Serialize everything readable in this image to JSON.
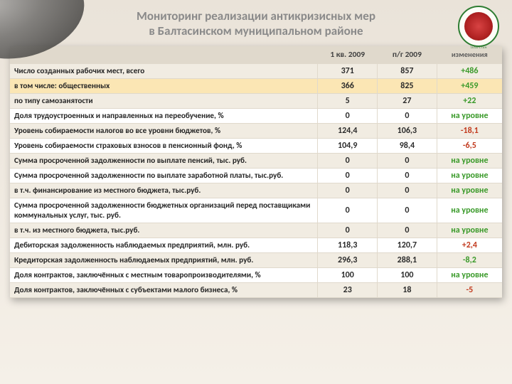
{
  "title_line1": "Мониторинг реализации антикризисных мер",
  "title_line2": "в Балтасинском муниципальном районе",
  "columns": {
    "label": "",
    "q1": "1 кв. 2009",
    "hy": "п/г 2009",
    "chg": "изменения"
  },
  "rows": [
    {
      "label": "Число созданных рабочих мест, всего",
      "q1": "371",
      "hy": "857",
      "chg": "+486",
      "cls": "pos",
      "stripe": true,
      "hl": false
    },
    {
      "label": "в том числе:  общественных",
      "q1": "366",
      "hy": "825",
      "chg": "+459",
      "cls": "pos",
      "stripe": false,
      "hl": true
    },
    {
      "label": "по типу самозанятости",
      "q1": "5",
      "hy": "27",
      "chg": "+22",
      "cls": "pos",
      "stripe": true,
      "hl": false
    },
    {
      "label": "Доля трудоустроенных и направленных на переобучение, %",
      "q1": "0",
      "hy": "0",
      "chg": "на уровне",
      "cls": "lvl",
      "stripe": false,
      "hl": false
    },
    {
      "label": "Уровень собираемости налогов во все уровни бюджетов, %",
      "q1": "124,4",
      "hy": "106,3",
      "chg": "-18,1",
      "cls": "neg",
      "stripe": true,
      "hl": false
    },
    {
      "label": "Уровень собираемости страховых взносов в пенсионный фонд, %",
      "q1": "104,9",
      "hy": "98,4",
      "chg": "-6,5",
      "cls": "neg",
      "stripe": false,
      "hl": false
    },
    {
      "label": "Сумма просроченной задолженности по выплате пенсий, тыс. руб.",
      "q1": "0",
      "hy": "0",
      "chg": "на уровне",
      "cls": "lvl",
      "stripe": true,
      "hl": false
    },
    {
      "label": "Сумма просроченной задолженности по выплате заработной платы, тыс.руб.",
      "q1": "0",
      "hy": "0",
      "chg": "на уровне",
      "cls": "lvl",
      "stripe": false,
      "hl": false
    },
    {
      "label": "в т.ч. финансирование из местного бюджета, тыс.руб.",
      "q1": "0",
      "hy": "0",
      "chg": "на уровне",
      "cls": "lvl",
      "stripe": true,
      "hl": false
    },
    {
      "label": "Сумма просроченной задолженности бюджетных организаций перед поставщиками коммунальных услуг, тыс. руб.",
      "q1": "0",
      "hy": "0",
      "chg": "на уровне",
      "cls": "lvl",
      "stripe": false,
      "hl": false
    },
    {
      "label": "в т.ч. из местного бюджета, тыс.руб.",
      "q1": "0",
      "hy": "0",
      "chg": "на уровне",
      "cls": "lvl",
      "stripe": true,
      "hl": false
    },
    {
      "label": "Дебиторская задолженность наблюдаемых предприятий, млн. руб.",
      "q1": "118,3",
      "hy": "120,7",
      "chg": "+2,4",
      "cls": "neg",
      "stripe": false,
      "hl": false
    },
    {
      "label": "Кредиторская задолженность наблюдаемых предприятий, млн. руб.",
      "q1": "296,3",
      "hy": "288,1",
      "chg": "-8,2",
      "cls": "pos",
      "stripe": true,
      "hl": false
    },
    {
      "label": "Доля контрактов, заключённых  с местным товаропроизводителями, %",
      "q1": "100",
      "hy": "100",
      "chg": "на уровне",
      "cls": "lvl",
      "stripe": false,
      "hl": false
    },
    {
      "label": "Доля контрактов, заключённых с субъектами малого бизнеса, %",
      "q1": "23",
      "hy": "18",
      "chg": "-5",
      "cls": "neg",
      "stripe": true,
      "hl": false
    }
  ]
}
